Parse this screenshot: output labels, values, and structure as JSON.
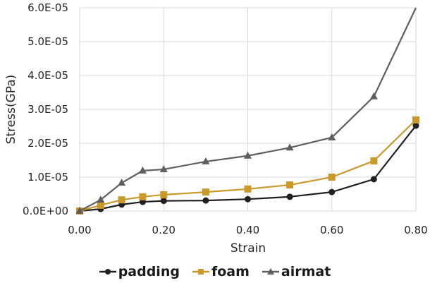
{
  "chart_data": {
    "type": "line",
    "title": "",
    "xlabel": "Strain",
    "ylabel": "Stress(GPa)",
    "xlim": [
      0.0,
      0.8
    ],
    "ylim": [
      0.0,
      6e-05
    ],
    "x_ticks": [
      "0.00",
      "0.20",
      "0.40",
      "0.60",
      "0.80"
    ],
    "y_ticks": [
      "0.0E+00",
      "1.0E-05",
      "2.0E-05",
      "3.0E-05",
      "4.0E-05",
      "5.0E-05",
      "6.0E-05"
    ],
    "grid": {
      "horizontal": true,
      "vertical": true
    },
    "legend_position": "bottom",
    "x": [
      0.0,
      0.05,
      0.1,
      0.15,
      0.2,
      0.3,
      0.4,
      0.5,
      0.6,
      0.7,
      0.8
    ],
    "series": [
      {
        "name": "padding",
        "color": "#231f20",
        "marker": "circle",
        "values": [
          0.0,
          6e-07,
          1.9e-06,
          2.7e-06,
          3e-06,
          3.1e-06,
          3.5e-06,
          4.2e-06,
          5.6e-06,
          9.4e-06,
          2.52e-05
        ]
      },
      {
        "name": "foam",
        "color": "#c9992a",
        "marker": "square",
        "values": [
          0.0,
          1.7e-06,
          3.3e-06,
          4.2e-06,
          4.8e-06,
          5.6e-06,
          6.5e-06,
          7.7e-06,
          1e-05,
          1.48e-05,
          2.69e-05
        ]
      },
      {
        "name": "airmat",
        "color": "#5f5f5f",
        "marker": "triangle",
        "values": [
          0.0,
          3.3e-06,
          8.3e-06,
          1.19e-05,
          1.23e-05,
          1.46e-05,
          1.63e-05,
          1.87e-05,
          2.17e-05,
          3.38e-05,
          6e-05
        ]
      }
    ]
  },
  "legend": {
    "items": [
      {
        "label": "padding"
      },
      {
        "label": "foam"
      },
      {
        "label": "airmat"
      }
    ]
  }
}
